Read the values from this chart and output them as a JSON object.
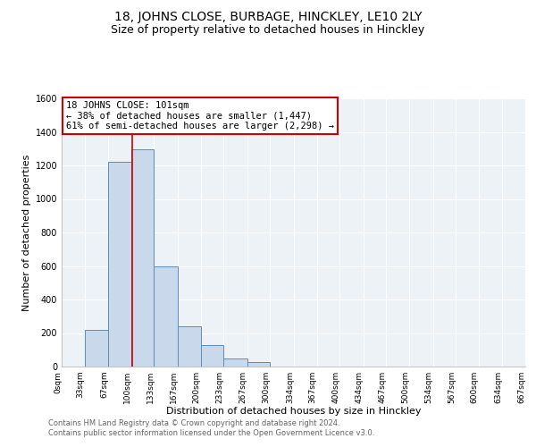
{
  "title": "18, JOHNS CLOSE, BURBAGE, HINCKLEY, LE10 2LY",
  "subtitle": "Size of property relative to detached houses in Hinckley",
  "xlabel": "Distribution of detached houses by size in Hinckley",
  "ylabel": "Number of detached properties",
  "bin_edges": [
    0,
    33,
    67,
    100,
    133,
    167,
    200,
    233,
    267,
    300,
    334,
    367,
    400,
    434,
    467,
    500,
    534,
    567,
    600,
    634,
    667
  ],
  "bin_values": [
    0,
    220,
    1220,
    1295,
    595,
    240,
    130,
    50,
    25,
    0,
    0,
    0,
    0,
    0,
    0,
    0,
    0,
    0,
    0,
    0
  ],
  "bar_color": "#c9d9eb",
  "bar_edge_color": "#5b8db8",
  "property_line_x": 101,
  "property_line_color": "#cc0000",
  "ylim": [
    0,
    1600
  ],
  "yticks": [
    0,
    200,
    400,
    600,
    800,
    1000,
    1200,
    1400,
    1600
  ],
  "annotation_title": "18 JOHNS CLOSE: 101sqm",
  "annotation_line1": "← 38% of detached houses are smaller (1,447)",
  "annotation_line2": "61% of semi-detached houses are larger (2,298) →",
  "annotation_box_color": "#ffffff",
  "annotation_box_edge": "#cc0000",
  "footer_line1": "Contains HM Land Registry data © Crown copyright and database right 2024.",
  "footer_line2": "Contains public sector information licensed under the Open Government Licence v3.0.",
  "tick_labels": [
    "0sqm",
    "33sqm",
    "67sqm",
    "100sqm",
    "133sqm",
    "167sqm",
    "200sqm",
    "233sqm",
    "267sqm",
    "300sqm",
    "334sqm",
    "367sqm",
    "400sqm",
    "434sqm",
    "467sqm",
    "500sqm",
    "534sqm",
    "567sqm",
    "600sqm",
    "634sqm",
    "667sqm"
  ],
  "background_color": "#edf2f7",
  "grid_color": "#ffffff",
  "fig_bg_color": "#ffffff",
  "title_fontsize": 10,
  "subtitle_fontsize": 9,
  "xlabel_fontsize": 8,
  "ylabel_fontsize": 8,
  "tick_fontsize": 6.5,
  "annot_fontsize": 7.5,
  "footer_fontsize": 6,
  "footer_color": "#666666"
}
